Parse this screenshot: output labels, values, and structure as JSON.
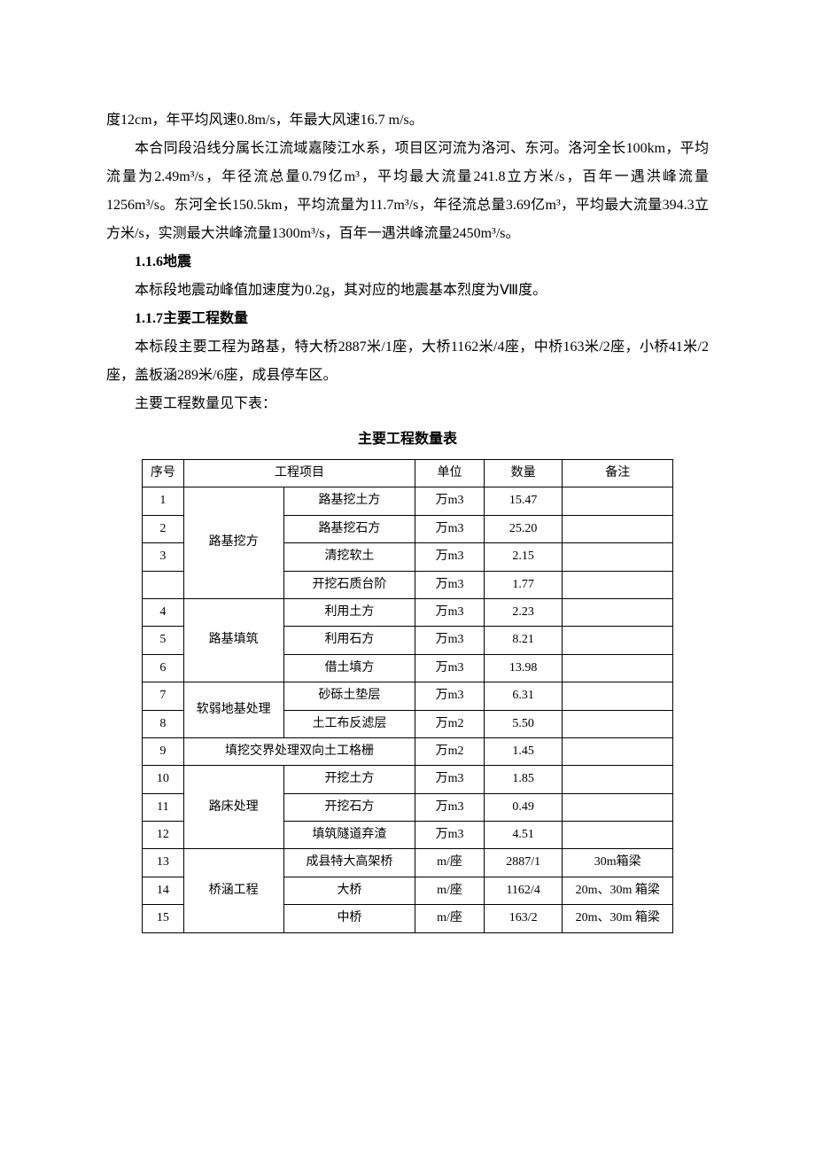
{
  "paragraphs": {
    "p1": "度12cm，年平均风速0.8m/s，年最大风速16.7 m/s。",
    "p2": "本合同段沿线分属长江流域嘉陵江水系，项目区河流为洛河、东河。洛河全长100km，平均流量为2.49m³/s，年径流总量0.79亿m³，平均最大流量241.8立方米/s，百年一遇洪峰流量1256m³/s。东河全长150.5km，平均流量为11.7m³/s，年径流总量3.69亿m³，平均最大流量394.3立方米/s，实测最大洪峰流量1300m³/s，百年一遇洪峰流量2450m³/s。",
    "h1": "1.1.6地震",
    "p3": "本标段地震动峰值加速度为0.2g，其对应的地震基本烈度为Ⅷ度。",
    "h2": "1.1.7主要工程数量",
    "p4": "本标段主要工程为路基，特大桥2887米/1座，大桥1162米/4座，中桥163米/2座，小桥41米/2座，盖板涵289米/6座，成县停车区。",
    "p5": "主要工程数量见下表："
  },
  "table": {
    "title": "主要工程数量表",
    "headers": {
      "seq": "序号",
      "project": "工程项目",
      "unit": "单位",
      "qty": "数量",
      "note": "备注"
    },
    "groups": [
      {
        "category": "路基挖方",
        "rows": [
          {
            "seq": "1",
            "item": "路基挖土方",
            "unit": "万m3",
            "qty": "15.47",
            "note": ""
          },
          {
            "seq": "2",
            "item": "路基挖石方",
            "unit": "万m3",
            "qty": "25.20",
            "note": ""
          },
          {
            "seq": "3",
            "item": "清挖软土",
            "unit": "万m3",
            "qty": "2.15",
            "note": ""
          },
          {
            "seq": "",
            "item": "开挖石质台阶",
            "unit": "万m3",
            "qty": "1.77",
            "note": ""
          }
        ]
      },
      {
        "category": "路基填筑",
        "rows": [
          {
            "seq": "4",
            "item": "利用土方",
            "unit": "万m3",
            "qty": "2.23",
            "note": ""
          },
          {
            "seq": "5",
            "item": "利用石方",
            "unit": "万m3",
            "qty": "8.21",
            "note": ""
          },
          {
            "seq": "6",
            "item": "借土填方",
            "unit": "万m3",
            "qty": "13.98",
            "note": ""
          }
        ]
      },
      {
        "category": "软弱地基处理",
        "rows": [
          {
            "seq": "7",
            "item": "砂砾土垫层",
            "unit": "万m3",
            "qty": "6.31",
            "note": ""
          },
          {
            "seq": "8",
            "item": "土工布反滤层",
            "unit": "万m2",
            "qty": "5.50",
            "note": ""
          }
        ]
      },
      {
        "span_row": {
          "seq": "9",
          "item": "填挖交界处理双向土工格栅",
          "unit": "万m2",
          "qty": "1.45",
          "note": ""
        }
      },
      {
        "category": "路床处理",
        "rows": [
          {
            "seq": "10",
            "item": "开挖土方",
            "unit": "万m3",
            "qty": "1.85",
            "note": ""
          },
          {
            "seq": "11",
            "item": "开挖石方",
            "unit": "万m3",
            "qty": "0.49",
            "note": ""
          },
          {
            "seq": "12",
            "item": "填筑隧道弃渣",
            "unit": "万m3",
            "qty": "4.51",
            "note": ""
          }
        ]
      },
      {
        "category": "桥涵工程",
        "rows": [
          {
            "seq": "13",
            "item": "成县特大高架桥",
            "unit": "m/座",
            "qty": "2887/1",
            "note": "30m箱梁"
          },
          {
            "seq": "14",
            "item": "大桥",
            "unit": "m/座",
            "qty": "1162/4",
            "note": "20m、30m 箱梁"
          },
          {
            "seq": "15",
            "item": "中桥",
            "unit": "m/座",
            "qty": "163/2",
            "note": "20m、30m 箱梁"
          }
        ]
      }
    ]
  }
}
